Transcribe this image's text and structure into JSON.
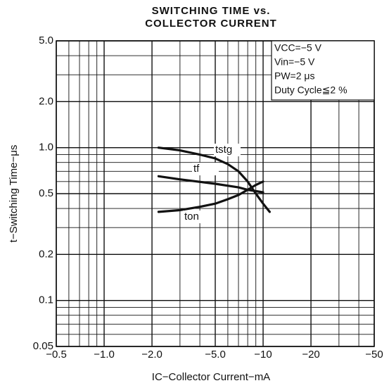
{
  "chart_data": {
    "type": "line",
    "title": [
      "SWITCHING TIME vs.",
      "COLLECTOR CURRENT"
    ],
    "x_label": "IC−Collector Current−mA",
    "y_label": "t−Switching Time−μs",
    "annotations": [
      "VCC=−5 V",
      "Vin=−5 V",
      "PW=2 μs",
      "Duty Cycle≦2 %"
    ],
    "log_x": true,
    "log_y": true,
    "grid": true,
    "xlim": [
      -0.5,
      -50
    ],
    "xticks": [
      -0.5,
      {
        "value": -1,
        "label": "−1.0"
      },
      {
        "value": -2,
        "label": "−2.0"
      },
      {
        "value": -5,
        "label": "−5.0"
      },
      -10,
      -20,
      -50
    ],
    "ylim": [
      0.05,
      5
    ],
    "yticks": [
      0.05,
      0.1,
      0.2,
      0.5,
      {
        "value": 1,
        "label": "1.0"
      },
      {
        "value": 2,
        "label": "2.0"
      },
      {
        "value": 5,
        "label": "5.0"
      }
    ],
    "series": [
      {
        "name": "tstg",
        "color": "#111111",
        "x": [
          -2.2,
          -3,
          -4,
          -5,
          -6,
          -7,
          -8,
          -9,
          -10,
          -11
        ],
        "values": [
          1.0,
          0.96,
          0.9,
          0.85,
          0.78,
          0.7,
          0.6,
          0.5,
          0.43,
          0.38
        ]
      },
      {
        "name": "tf",
        "color": "#111111",
        "x": [
          -2.2,
          -3,
          -5,
          -7,
          -8,
          -10
        ],
        "values": [
          0.65,
          0.62,
          0.58,
          0.55,
          0.53,
          0.51
        ]
      },
      {
        "name": "ton",
        "color": "#111111",
        "x": [
          -2.2,
          -3,
          -4,
          -5,
          -6,
          -7,
          -8,
          -9,
          -10
        ],
        "values": [
          0.38,
          0.39,
          0.41,
          0.43,
          0.46,
          0.49,
          0.53,
          0.57,
          0.6
        ]
      }
    ]
  }
}
